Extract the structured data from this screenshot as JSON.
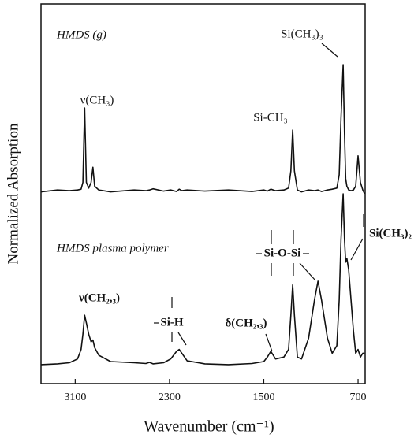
{
  "chart_data": {
    "type": "line",
    "x_label": "Wavenumber (cm⁻¹)",
    "y_label": "Normalized Absorption",
    "x": [
      3390,
      3250,
      3150,
      3080,
      3050,
      3035,
      3020,
      3005,
      2985,
      2965,
      2950,
      2935,
      2900,
      2800,
      2600,
      2500,
      2470,
      2440,
      2350,
      2290,
      2240,
      2218,
      2195,
      2150,
      2000,
      1800,
      1600,
      1500,
      1470,
      1440,
      1400,
      1330,
      1290,
      1270,
      1255,
      1240,
      1215,
      1180,
      1120,
      1070,
      1040,
      1010,
      960,
      920,
      880,
      860,
      845,
      827,
      815,
      805,
      795,
      780,
      760,
      740,
      720,
      700,
      680,
      660,
      645
    ],
    "series": [
      {
        "name": "HMDS (g)",
        "color": "#111111",
        "values": [
          50.5,
          51,
          50.8,
          51,
          51.2,
          53,
          72.6,
          53,
          51.5,
          53,
          57,
          52,
          51,
          50.5,
          51,
          50.8,
          51,
          51.3,
          50.7,
          51,
          50.6,
          51.2,
          50.8,
          51,
          50.7,
          51,
          50.6,
          51,
          50.7,
          51.2,
          50.8,
          51,
          51.5,
          56,
          66.8,
          56,
          51,
          50.5,
          51,
          50.8,
          51,
          50.6,
          51,
          51.2,
          51.5,
          55,
          70,
          84,
          66,
          54,
          52,
          51,
          50.8,
          51,
          52,
          60,
          53,
          51,
          50
        ]
      },
      {
        "name": "HMDS plasma polymer",
        "color": "#111111",
        "values": [
          5,
          5.2,
          5.5,
          6.5,
          9,
          13,
          18,
          16,
          13,
          11,
          11.5,
          9.5,
          7.5,
          5.8,
          5.5,
          5.3,
          5.6,
          5.2,
          5.5,
          6.5,
          8.5,
          9,
          8,
          6,
          5.2,
          5,
          5.3,
          5.8,
          7,
          8.5,
          6.5,
          7,
          9,
          18,
          26,
          18,
          7,
          6.5,
          12,
          22,
          27,
          22,
          12,
          8,
          10,
          22,
          38,
          50,
          38,
          32,
          33,
          30,
          22,
          14,
          8,
          9,
          7,
          8,
          8
        ]
      }
    ],
    "annotations": [
      "ν(CH₃)",
      "Si-CH₃",
      "Si(CH₃)₃",
      "ν(CH₂,₃)",
      "Si-H",
      "δ(CH₂,₃)",
      "Si-O-Si",
      "Si(CH₃)₂"
    ],
    "xlim": [
      3390,
      640
    ],
    "ylim": [
      0,
      100
    ],
    "xticks": [
      3100,
      2300,
      1500,
      700
    ],
    "grid": false
  }
}
